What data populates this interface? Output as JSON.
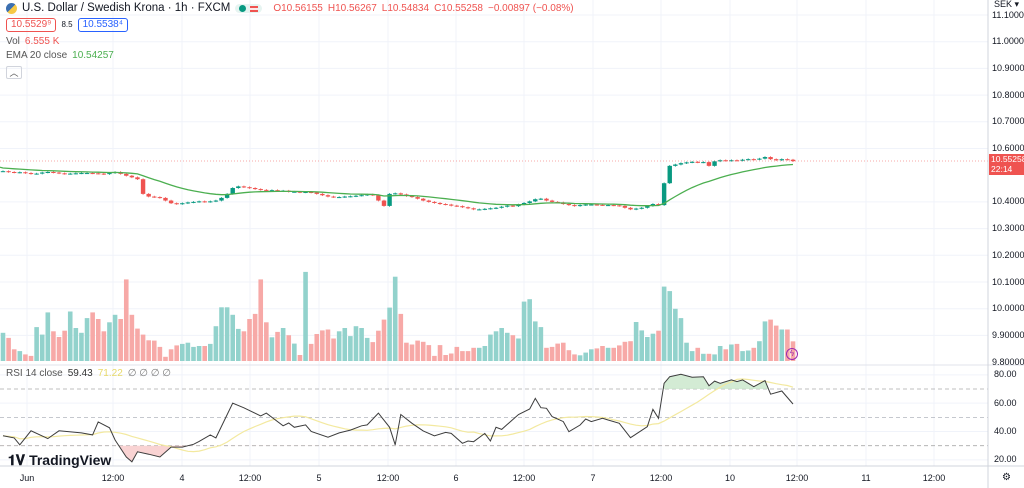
{
  "header": {
    "symbol_title": "U.S. Dollar / Swedish Krona · 1h · FXCM",
    "open": "O10.56155",
    "high": "H10.56267",
    "low": "L10.54834",
    "close": "C10.55258",
    "change": "−0.00897 (−0.08%)",
    "bid": "10.5529⁹",
    "spread": "8.5",
    "ask": "10.5538⁴"
  },
  "indicators": {
    "vol_label": "Vol",
    "vol_value": "6.555 K",
    "ema_label": "EMA 20 close",
    "ema_value": "10.54257",
    "rsi_label": "RSI 14 close",
    "rsi_value": "59.43",
    "rsi_ma_value": "71.22",
    "rsi_extra": "∅ ∅ ∅ ∅",
    "collapse_icon": "chevron-up"
  },
  "price_axis": {
    "currency": "SEK",
    "ticks": [
      "11.10000",
      "11.00000",
      "10.90000",
      "10.80000",
      "10.70000",
      "10.60000",
      "10.40000",
      "10.30000",
      "10.20000",
      "10.10000",
      "10.00000",
      "9.90000",
      "9.80000"
    ],
    "last_price": "10.55258",
    "countdown": "22:14"
  },
  "rsi_axis": {
    "ticks": [
      "80.00",
      "60.00",
      "40.00",
      "20.00"
    ],
    "bands": [
      70,
      50,
      30
    ]
  },
  "time_axis": {
    "labels": [
      "Jun",
      "12:00",
      "4",
      "12:00",
      "5",
      "12:00",
      "6",
      "12:00",
      "7",
      "12:00",
      "10",
      "12:00",
      "11",
      "12:00"
    ]
  },
  "colors": {
    "up": "#089981",
    "down": "#ef5350",
    "vol_up": "#92d2cc",
    "vol_down": "#f7a9a7",
    "ema": "#4caf50",
    "rsi": "#3d3d3d",
    "rsi_ma": "#f3e99f"
  },
  "brand": "TradingView",
  "chart_data": {
    "type": "candlestick",
    "interval": "1h",
    "closes": [
      10.515,
      10.512,
      10.51,
      10.511,
      10.508,
      10.505,
      10.506,
      10.51,
      10.512,
      10.51,
      10.507,
      10.505,
      10.506,
      10.507,
      10.508,
      10.508,
      10.507,
      10.506,
      10.504,
      10.508,
      10.512,
      10.505,
      10.498,
      10.492,
      10.485,
      10.43,
      10.42,
      10.418,
      10.415,
      10.405,
      10.395,
      10.392,
      10.395,
      10.398,
      10.4,
      10.402,
      10.4,
      10.402,
      10.405,
      10.415,
      10.43,
      10.452,
      10.458,
      10.455,
      10.452,
      10.448,
      10.445,
      10.443,
      10.444,
      10.44,
      10.442,
      10.438,
      10.438,
      10.436,
      10.437,
      10.435,
      10.43,
      10.425,
      10.42,
      10.418,
      10.418,
      10.42,
      10.421,
      10.423,
      10.425,
      10.428,
      10.425,
      10.405,
      10.385,
      10.43,
      10.432,
      10.428,
      10.422,
      10.418,
      10.412,
      10.405,
      10.4,
      10.396,
      10.392,
      10.39,
      10.386,
      10.384,
      10.38,
      10.376,
      10.372,
      10.372,
      10.374,
      10.376,
      10.378,
      10.382,
      10.386,
      10.384,
      10.39,
      10.396,
      10.402,
      10.41,
      10.412,
      10.405,
      10.4,
      10.398,
      10.392,
      10.388,
      10.385,
      10.388,
      10.39,
      10.39,
      10.389,
      10.388,
      10.388,
      10.387,
      10.385,
      10.378,
      10.372,
      10.375,
      10.378,
      10.385,
      10.392,
      10.388,
      10.47,
      10.535,
      10.54,
      10.545,
      10.548,
      10.55,
      10.548,
      10.549,
      10.535,
      10.552,
      10.556,
      10.554,
      10.556,
      10.555,
      10.558,
      10.56,
      10.559,
      10.562,
      10.568,
      10.56,
      10.556,
      10.56,
      10.558,
      10.5526
    ],
    "volumes_k": [
      9.4,
      7.7,
      3.9,
      3.3,
      2.2,
      1.7,
      11.3,
      8.8,
      16.2,
      9.9,
      8.0,
      10.1,
      16.5,
      11.0,
      9.4,
      14.3,
      16.2,
      14.0,
      9.9,
      12.9,
      15.4,
      14.0,
      27.2,
      15.4,
      10.8,
      8.8,
      6.9,
      6.8,
      4.7,
      1.4,
      3.9,
      5.2,
      5.7,
      6.1,
      4.7,
      5.0,
      5.0,
      5.7,
      11.6,
      17.9,
      17.9,
      15.4,
      10.7,
      9.9,
      14.0,
      15.7,
      27.2,
      12.9,
      7.9,
      9.7,
      11.0,
      8.6,
      5.8,
      2.0,
      29.7,
      5.7,
      9.0,
      10.2,
      10.5,
      7.5,
      9.9,
      11.0,
      8.3,
      11.6,
      11.0,
      7.7,
      6.3,
      10.1,
      13.8,
      17.8,
      28.1,
      15.7,
      6.1,
      5.5,
      6.8,
      6.4,
      5.3,
      1.7,
      5.3,
      2.0,
      2.5,
      4.7,
      3.3,
      3.3,
      4.4,
      4.4,
      5.0,
      8.8,
      9.9,
      11.0,
      9.4,
      8.6,
      7.5,
      19.8,
      20.6,
      13.2,
      11.3,
      4.4,
      4.7,
      5.8,
      6.1,
      3.6,
      2.2,
      1.9,
      2.8,
      3.9,
      4.2,
      5.0,
      4.4,
      4.4,
      5.2,
      6.4,
      6.6,
      13.0,
      10.2,
      8.0,
      9.1,
      10.1,
      24.8,
      23.3,
      17.4,
      14.3,
      6.1,
      3.3,
      4.4,
      2.4,
      2.4,
      2.2,
      5.0,
      3.9,
      5.5,
      5.7,
      3.3,
      3.5,
      4.4,
      6.6,
      13.2,
      13.8,
      11.8,
      10.5,
      10.5,
      6.555
    ],
    "rsi_points": [
      [
        0,
        37
      ],
      [
        2,
        35.5
      ],
      [
        3,
        30.6
      ],
      [
        5,
        40.5
      ],
      [
        8,
        35
      ],
      [
        10,
        40.5
      ],
      [
        14,
        39
      ],
      [
        16,
        37.6
      ],
      [
        17,
        46.8
      ],
      [
        19,
        42.6
      ],
      [
        20,
        34
      ],
      [
        22,
        22
      ],
      [
        23,
        18.6
      ],
      [
        24,
        25.7
      ],
      [
        26,
        24
      ],
      [
        28,
        22
      ],
      [
        30,
        29
      ],
      [
        32,
        29
      ],
      [
        34,
        31
      ],
      [
        35,
        33
      ],
      [
        37,
        37.6
      ],
      [
        38,
        35.5
      ],
      [
        41,
        60
      ],
      [
        43,
        56.7
      ],
      [
        46,
        51
      ],
      [
        47,
        53
      ],
      [
        50,
        44
      ],
      [
        51,
        46
      ],
      [
        52,
        43
      ],
      [
        54,
        44.7
      ],
      [
        55,
        40
      ],
      [
        58,
        36
      ],
      [
        60,
        39
      ],
      [
        62,
        41
      ],
      [
        64,
        44
      ],
      [
        65,
        44.7
      ],
      [
        67,
        53
      ],
      [
        69,
        43
      ],
      [
        70,
        30.6
      ],
      [
        71,
        52
      ],
      [
        73,
        45.8
      ],
      [
        75,
        40.4
      ],
      [
        77,
        37
      ],
      [
        79,
        39.4
      ],
      [
        80,
        38.7
      ],
      [
        82,
        31.7
      ],
      [
        83,
        33.3
      ],
      [
        84,
        32.8
      ],
      [
        86,
        38.7
      ],
      [
        87,
        33.3
      ],
      [
        88,
        43
      ],
      [
        89,
        41.5
      ],
      [
        90,
        45
      ],
      [
        92,
        52
      ],
      [
        94,
        55.9
      ],
      [
        95,
        63.4
      ],
      [
        96,
        56.8
      ],
      [
        97,
        56.4
      ],
      [
        98,
        50.5
      ],
      [
        100,
        47
      ],
      [
        101,
        39.9
      ],
      [
        103,
        44.6
      ],
      [
        104,
        48.8
      ],
      [
        105,
        47
      ],
      [
        107,
        49.3
      ],
      [
        108,
        48.1
      ],
      [
        110,
        45.8
      ],
      [
        112,
        35.6
      ],
      [
        115,
        43.4
      ],
      [
        116,
        55.7
      ],
      [
        117,
        49.3
      ],
      [
        118,
        74
      ],
      [
        119,
        78.7
      ],
      [
        121,
        80.4
      ],
      [
        123,
        78.3
      ],
      [
        125,
        78.7
      ],
      [
        126,
        72.3
      ],
      [
        127,
        75.6
      ],
      [
        128,
        74
      ],
      [
        130,
        76.4
      ],
      [
        131,
        75.2
      ],
      [
        132,
        76.4
      ],
      [
        134,
        71.6
      ],
      [
        136,
        75.9
      ],
      [
        137,
        66.3
      ],
      [
        139,
        68.6
      ],
      [
        141,
        59.43
      ]
    ],
    "price_range": [
      9.8,
      11.1
    ],
    "rsi_range": [
      20,
      80
    ]
  }
}
